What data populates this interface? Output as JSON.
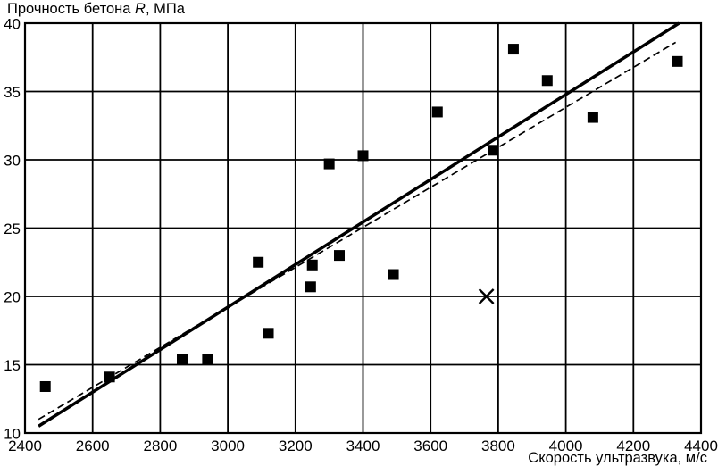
{
  "page": {
    "background": "#ffffff"
  },
  "chart_data": {
    "type": "scatter",
    "title": "",
    "xlabel": "Скорость ультразвука, м/с",
    "ylabel": "Прочность бетона R, МПа",
    "ylabel_parts": [
      "Прочность бетона ",
      "R",
      ", МПа"
    ],
    "xlim": [
      2400,
      4400
    ],
    "ylim": [
      10,
      40
    ],
    "xticks": [
      2400,
      2600,
      2800,
      3000,
      3200,
      3400,
      3600,
      3800,
      4000,
      4200,
      4400
    ],
    "yticks": [
      10,
      15,
      20,
      25,
      30,
      35,
      40
    ],
    "grid": true,
    "legend": "none",
    "colors": {
      "ink": "#000000",
      "background": "#ffffff"
    },
    "series": [
      {
        "name": "measured-points",
        "type": "scatter",
        "marker": "filled-square",
        "points": [
          [
            2460,
            13.4
          ],
          [
            2650,
            14.1
          ],
          [
            2865,
            15.4
          ],
          [
            2940,
            15.4
          ],
          [
            3090,
            22.5
          ],
          [
            3120,
            17.3
          ],
          [
            3245,
            20.7
          ],
          [
            3250,
            22.3
          ],
          [
            3300,
            29.7
          ],
          [
            3330,
            23.0
          ],
          [
            3400,
            30.3
          ],
          [
            3490,
            21.6
          ],
          [
            3620,
            33.5
          ],
          [
            3785,
            30.7
          ],
          [
            3845,
            38.1
          ],
          [
            3945,
            35.8
          ],
          [
            4080,
            33.1
          ],
          [
            4330,
            37.2
          ]
        ]
      },
      {
        "name": "excluded-point",
        "type": "scatter",
        "marker": "x-cross",
        "points": [
          [
            3765,
            20.0
          ]
        ]
      },
      {
        "name": "regression-line-solid",
        "type": "line",
        "style": "solid",
        "points": [
          [
            2440,
            10.5
          ],
          [
            4335,
            40.0
          ]
        ]
      },
      {
        "name": "regression-line-dashed",
        "type": "line",
        "style": "dashed",
        "points": [
          [
            2440,
            11.0
          ],
          [
            4325,
            38.6
          ]
        ]
      }
    ]
  }
}
